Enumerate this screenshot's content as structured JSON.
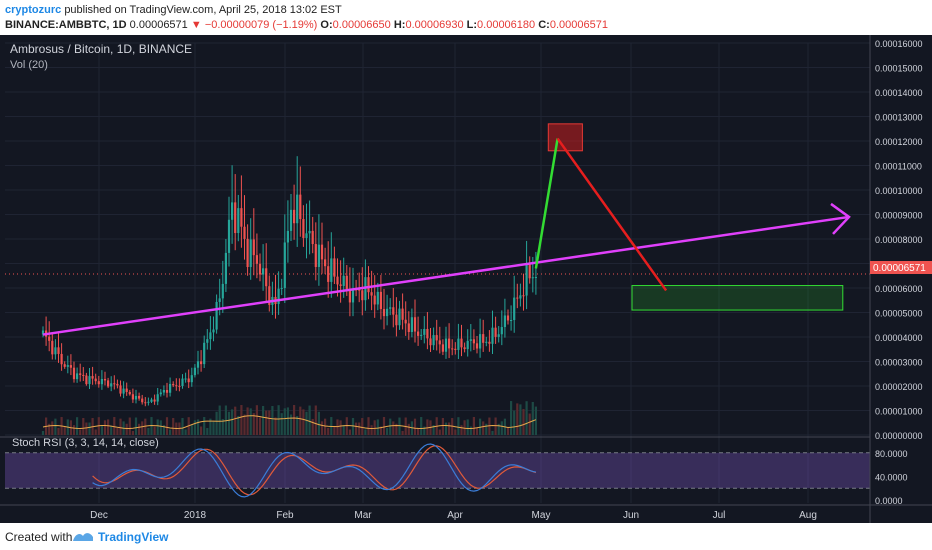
{
  "header": {
    "author": "cryptozurc",
    "published": "published on TradingView.com, April 25, 2018 13:02 EST",
    "symbol": "BINANCE:AMBBTC, 1D",
    "price": "0.00006571",
    "arrow": "▼",
    "change": "−0.00000079 (−1.19%)",
    "o_label": "O:",
    "o_value": "0.00006650",
    "h_label": "H:",
    "h_value": "0.00006930",
    "l_label": "L:",
    "l_value": "0.00006180",
    "c_label": "C:",
    "c_value": "0.00006571"
  },
  "chart": {
    "title": "Ambrosus / Bitcoin, 1D, BINANCE",
    "vol_label": "Vol (20)",
    "rsi_label": "Stoch RSI (3, 3, 14, 14, close)",
    "current_price_label": "0.00006571"
  },
  "footer": {
    "created": "Created with",
    "brand": "TradingView"
  },
  "colors": {
    "background": "#131722",
    "up": "#26a69a",
    "down": "#ef5350",
    "trendline": "#e040fb",
    "green_arrow": "#33dd33",
    "red_arrow": "#e61e1e",
    "rsi_k": "#3b7dd8",
    "rsi_d": "#e05a3a",
    "volume_ma": "#e7a84b"
  },
  "chart_data": {
    "type": "candlestick",
    "y_ticks": [
      "0.00016000",
      "0.00015000",
      "0.00014000",
      "0.00013000",
      "0.00012000",
      "0.00011000",
      "0.00010000",
      "0.00009000",
      "0.00008000",
      "0.00007000",
      "0.00006000",
      "0.00005000",
      "0.00004000",
      "0.00003000",
      "0.00002000",
      "0.00001000",
      "0.00000000"
    ],
    "ylim": [
      0,
      0.00016
    ],
    "x_ticks": [
      "Dec",
      "2018",
      "Feb",
      "Mar",
      "Apr",
      "May",
      "Jun",
      "Jul",
      "Aug"
    ],
    "rsi_ticks": [
      "80.0000",
      "40.0000",
      "0.0000"
    ],
    "close_path": [
      [
        0,
        4.1e-05
      ],
      [
        3,
        3.6e-05
      ],
      [
        6,
        3e-05
      ],
      [
        10,
        2.5e-05
      ],
      [
        14,
        2.3e-05
      ],
      [
        18,
        2.2e-05
      ],
      [
        22,
        2.1e-05
      ],
      [
        26,
        1.8e-05
      ],
      [
        30,
        1.5e-05
      ],
      [
        34,
        1.3e-05
      ],
      [
        37,
        1.6e-05
      ],
      [
        40,
        1.9e-05
      ],
      [
        44,
        2.1e-05
      ],
      [
        48,
        2.4e-05
      ],
      [
        51,
        3.2e-05
      ],
      [
        54,
        4.2e-05
      ],
      [
        57,
        5.5e-05
      ],
      [
        59,
        7.5e-05
      ],
      [
        61,
        9.3e-05
      ],
      [
        63,
        8.8e-05
      ],
      [
        66,
        7.5e-05
      ],
      [
        69,
        7.2e-05
      ],
      [
        72,
        6e-05
      ],
      [
        75,
        5.2e-05
      ],
      [
        78,
        7.3e-05
      ],
      [
        80,
        9.3e-05
      ],
      [
        82,
        9.1e-05
      ],
      [
        85,
        8.2e-05
      ],
      [
        88,
        7.5e-05
      ],
      [
        91,
        6.9e-05
      ],
      [
        94,
        6.5e-05
      ],
      [
        97,
        6.1e-05
      ],
      [
        100,
        5.7e-05
      ],
      [
        103,
        6e-05
      ],
      [
        106,
        5.8e-05
      ],
      [
        109,
        5.2e-05
      ],
      [
        112,
        5e-05
      ],
      [
        115,
        4.8e-05
      ],
      [
        118,
        4.5e-05
      ],
      [
        121,
        4.2e-05
      ],
      [
        124,
        4e-05
      ],
      [
        127,
        3.8e-05
      ],
      [
        130,
        3.6e-05
      ],
      [
        133,
        3.6e-05
      ],
      [
        136,
        3.7e-05
      ],
      [
        139,
        3.8e-05
      ],
      [
        142,
        3.8e-05
      ],
      [
        145,
        4e-05
      ],
      [
        148,
        4.4e-05
      ],
      [
        151,
        5e-05
      ],
      [
        154,
        5.8e-05
      ],
      [
        157,
        6.6e-05
      ],
      [
        159,
        6.6e-05
      ]
    ],
    "annotations": {
      "trendline": {
        "from": [
          0,
          4.1e-05
        ],
        "to": [
          260,
          8.9e-05
        ]
      },
      "green_arrow": {
        "from": [
          159,
          6.8e-05
        ],
        "to": [
          166,
          0.000121
        ]
      },
      "red_arrow": {
        "from": [
          166,
          0.000121
        ],
        "to": [
          201,
          5.9e-05
        ]
      },
      "red_box": {
        "x": [
          163,
          174
        ],
        "y": [
          0.000116,
          0.000127
        ]
      },
      "green_box": {
        "x": [
          190,
          258
        ],
        "y": [
          5.1e-05,
          6.1e-05
        ]
      }
    }
  }
}
